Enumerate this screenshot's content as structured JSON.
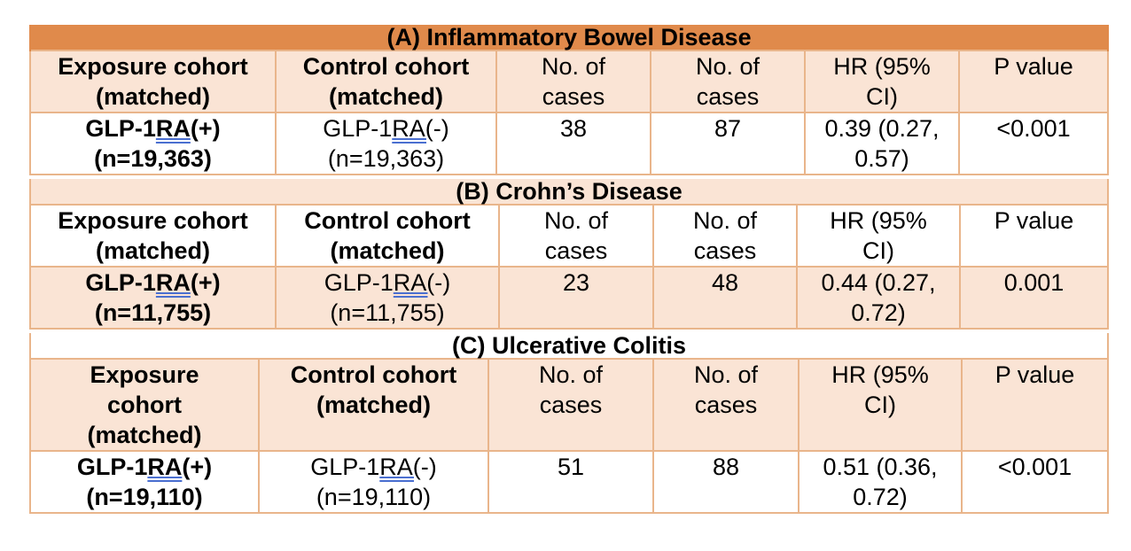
{
  "headers": {
    "exposure": [
      "Exposure cohort",
      "(matched)"
    ],
    "exposure_c": [
      "Exposure",
      "cohort",
      "(matched)"
    ],
    "control": [
      "Control cohort",
      "(matched)"
    ],
    "cases": [
      "No. of",
      "cases"
    ],
    "hr": [
      "HR (95%",
      "CI)"
    ],
    "p": "P value"
  },
  "sections": [
    {
      "title": "(A) Inflammatory Bowel Disease",
      "exposure": {
        "prefix": "GLP-1",
        "ra": "RA",
        "suffix": "(+)",
        "n": "(n=19,363)"
      },
      "control": {
        "prefix": "GLP-1",
        "ra": "RA(",
        "suffix": "-)",
        "n": "(n=19,363)"
      },
      "exp_cases": "38",
      "ctl_cases": "87",
      "hr": [
        "0.39 (0.27,",
        "0.57)"
      ],
      "p": "<0.001"
    },
    {
      "title": "(B) Crohn’s Disease",
      "exposure": {
        "prefix": "GLP-1",
        "ra": "RA",
        "suffix": "(+)",
        "n": "(n=11,755)"
      },
      "control": {
        "prefix": "GLP-1",
        "ra": "RA(",
        "suffix": "-)",
        "n": "(n=11,755)"
      },
      "exp_cases": "23",
      "ctl_cases": "48",
      "hr": [
        "0.44 (0.27,",
        "0.72)"
      ],
      "p": "0.001"
    },
    {
      "title": "(C) Ulcerative Colitis",
      "exposure": {
        "prefix": "GLP-1",
        "ra": "RA",
        "suffix": "(+)",
        "n": "(n=19,110)"
      },
      "control": {
        "prefix": "GLP-1",
        "ra": "RA(",
        "suffix": "-)",
        "n": "(n=19,110)"
      },
      "exp_cases": "51",
      "ctl_cases": "88",
      "hr": [
        "0.51 (0.36,",
        "0.72)"
      ],
      "p": "<0.001"
    }
  ],
  "colors": {
    "title_orange": "#e08a4b",
    "peach": "#fae4d5",
    "border": "#e9b58b",
    "underline": "#4a6fd0"
  }
}
